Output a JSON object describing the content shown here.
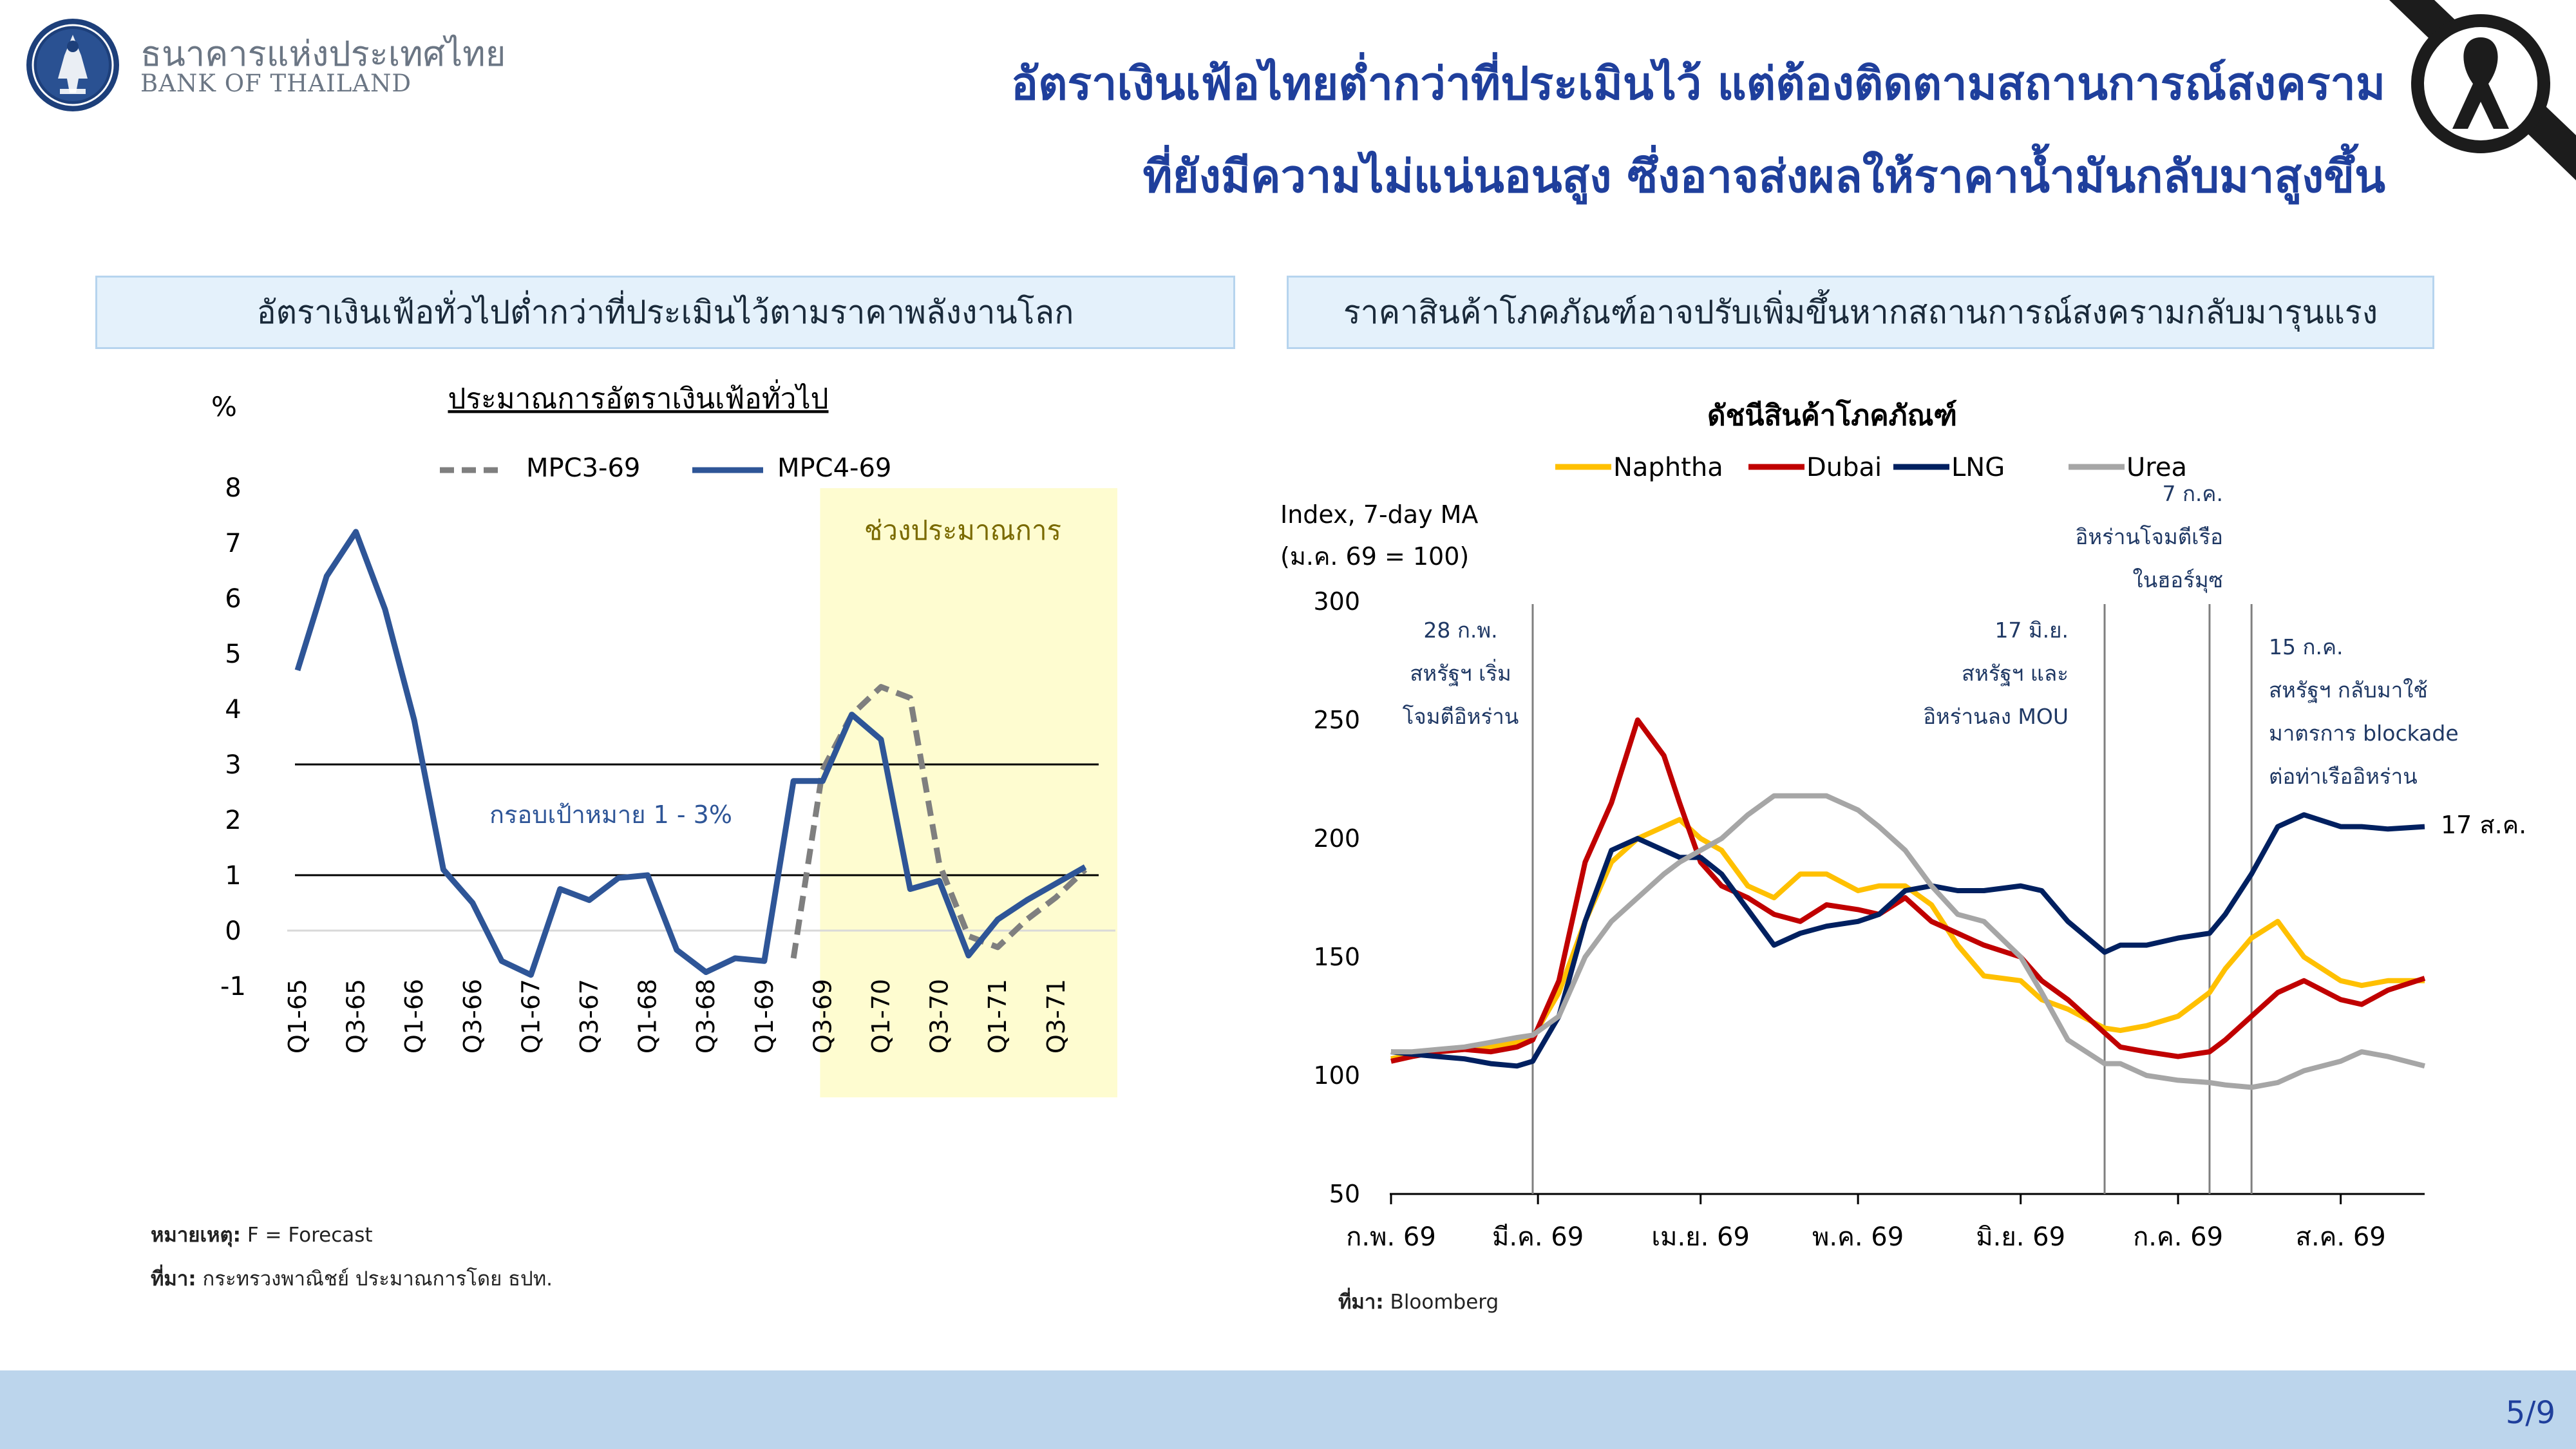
{
  "header": {
    "bank_name_th": "ธนาคารแห่งประเทศไทย",
    "bank_name_en": "BANK OF THAILAND",
    "title_line1": "อัตราเงินเฟ้อไทยต่ำกว่าที่ประเมินไว้ แต่ต้องติดตามสถานการณ์สงคราม",
    "title_line2": "ที่ยังมีความไม่แน่นอนสูง ซึ่งอาจส่งผลให้ราคาน้ำมันกลับมาสูงขึ้น"
  },
  "left_panel": {
    "header": "อัตราเงินเฟ้อทั่วไปต่ำกว่าที่ประเมินไว้ตามราคาพลังงานโลก",
    "note_label": "หมายเหตุ:",
    "note_text": "F = Forecast",
    "source_label": "ที่มา:",
    "source_text": "กระทรวงพาณิชย์ ประมาณการโดย ธปท."
  },
  "right_panel": {
    "header": "ราคาสินค้าโภคภัณฑ์อาจปรับเพิ่มขึ้นหากสถานการณ์สงครามกลับมารุนแรง",
    "source_label": "ที่มา:",
    "source_text": "Bloomberg"
  },
  "footer": {
    "page": "5/9"
  },
  "chart_data": [
    {
      "type": "line",
      "title": "ประมาณการอัตราเงินเฟ้อทั่วไป",
      "ylabel": "%",
      "ylim": [
        -1,
        8
      ],
      "yticks": [
        -1,
        0,
        1,
        2,
        3,
        4,
        5,
        6,
        7,
        8
      ],
      "x": [
        "Q1-65",
        "Q2-65",
        "Q3-65",
        "Q4-65",
        "Q1-66",
        "Q2-66",
        "Q3-66",
        "Q4-66",
        "Q1-67",
        "Q2-67",
        "Q3-67",
        "Q4-67",
        "Q1-68",
        "Q2-68",
        "Q3-68",
        "Q4-68",
        "Q1-69",
        "Q2-69",
        "Q3-69",
        "Q4-69",
        "Q1-70",
        "Q2-70",
        "Q3-70",
        "Q4-70",
        "Q1-71",
        "Q2-71",
        "Q3-71",
        "Q4-71"
      ],
      "x_tick_labels": [
        "Q1-65",
        "Q3-65",
        "Q1-66",
        "Q3-66",
        "Q1-67",
        "Q3-67",
        "Q1-68",
        "Q3-68",
        "Q1-69",
        "Q3-69",
        "Q1-70",
        "Q3-70",
        "Q1-71",
        "Q3-71"
      ],
      "series": [
        {
          "name": "MPC3-69",
          "style": "dashed",
          "color": "#7f7f7f",
          "values": [
            null,
            null,
            null,
            null,
            null,
            null,
            null,
            null,
            null,
            null,
            null,
            null,
            null,
            null,
            null,
            null,
            null,
            -0.5,
            2.9,
            3.9,
            4.4,
            4.2,
            1.2,
            -0.1,
            -0.3,
            0.2,
            0.6,
            1.1
          ]
        },
        {
          "name": "MPC4-69",
          "style": "solid",
          "color": "#2e5597",
          "values": [
            4.7,
            6.4,
            7.2,
            5.8,
            3.8,
            1.1,
            0.5,
            -0.55,
            -0.8,
            0.75,
            0.55,
            0.95,
            1.0,
            -0.35,
            -0.75,
            -0.5,
            -0.55,
            2.7,
            2.7,
            3.9,
            3.45,
            0.75,
            0.9,
            -0.45,
            0.2,
            0.55,
            0.85,
            1.15
          ]
        }
      ],
      "reference_lines": [
        1,
        3
      ],
      "shaded_label": "ช่วงประมาณการ",
      "shaded_from": "Q3-69",
      "target_band_label": "กรอบเป้าหมาย 1 - 3%",
      "grid": false,
      "legend_position": "top"
    },
    {
      "type": "line",
      "title": "ดัชนีสินค้าโภคภัณฑ์",
      "ylabel_line1": "Index, 7-day MA",
      "ylabel_line2": "(ม.ค. 69 = 100)",
      "ylim": [
        50,
        300
      ],
      "yticks": [
        50,
        100,
        150,
        200,
        250,
        300
      ],
      "x_dates": [
        "2026-02-01",
        "2026-02-05",
        "2026-02-10",
        "2026-02-15",
        "2026-02-20",
        "2026-02-25",
        "2026-02-28",
        "2026-03-05",
        "2026-03-10",
        "2026-03-15",
        "2026-03-20",
        "2026-03-25",
        "2026-03-28",
        "2026-04-01",
        "2026-04-05",
        "2026-04-10",
        "2026-04-15",
        "2026-04-20",
        "2026-04-25",
        "2026-05-01",
        "2026-05-05",
        "2026-05-10",
        "2026-05-15",
        "2026-05-20",
        "2026-05-25",
        "2026-06-01",
        "2026-06-05",
        "2026-06-10",
        "2026-06-17",
        "2026-06-20",
        "2026-06-25",
        "2026-07-01",
        "2026-07-07",
        "2026-07-10",
        "2026-07-15",
        "2026-07-20",
        "2026-07-25",
        "2026-08-01",
        "2026-08-05",
        "2026-08-10",
        "2026-08-17"
      ],
      "xlim": [
        "2026-02-01",
        "2026-08-17"
      ],
      "x_tick_labels": [
        "ก.พ. 69",
        "มี.ค. 69",
        "เม.ย. 69",
        "พ.ค. 69",
        "มิ.ย. 69",
        "ก.ค. 69",
        "ส.ค. 69"
      ],
      "x_tick_dates": [
        "2026-02-01",
        "2026-03-01",
        "2026-04-01",
        "2026-05-01",
        "2026-06-01",
        "2026-07-01",
        "2026-08-01"
      ],
      "series": [
        {
          "name": "Naphtha",
          "color": "#ffc000",
          "values": [
            107,
            109,
            110,
            111,
            112,
            114,
            116,
            135,
            165,
            190,
            200,
            205,
            208,
            200,
            195,
            180,
            175,
            185,
            185,
            178,
            180,
            180,
            172,
            155,
            142,
            140,
            132,
            128,
            120,
            119,
            121,
            125,
            135,
            145,
            158,
            165,
            150,
            140,
            138,
            140,
            140
          ]
        },
        {
          "name": "Dubai",
          "color": "#c00000",
          "values": [
            106,
            108,
            110,
            111,
            110,
            112,
            115,
            140,
            190,
            215,
            250,
            235,
            215,
            190,
            180,
            175,
            168,
            165,
            172,
            170,
            168,
            175,
            165,
            160,
            155,
            150,
            140,
            132,
            118,
            112,
            110,
            108,
            110,
            115,
            125,
            135,
            140,
            132,
            130,
            136,
            141
          ]
        },
        {
          "name": "LNG",
          "color": "#002060",
          "values": [
            110,
            109,
            108,
            107,
            105,
            104,
            106,
            125,
            165,
            195,
            200,
            195,
            192,
            192,
            185,
            170,
            155,
            160,
            163,
            165,
            168,
            178,
            180,
            178,
            178,
            180,
            178,
            165,
            152,
            155,
            155,
            158,
            160,
            168,
            185,
            205,
            210,
            205,
            205,
            204,
            205
          ]
        },
        {
          "name": "Urea",
          "color": "#a6a6a6",
          "values": [
            110,
            110,
            111,
            112,
            114,
            116,
            117,
            125,
            150,
            165,
            175,
            185,
            190,
            195,
            200,
            210,
            218,
            218,
            218,
            212,
            205,
            195,
            180,
            168,
            165,
            150,
            135,
            115,
            105,
            105,
            100,
            98,
            97,
            96,
            95,
            97,
            102,
            106,
            110,
            108,
            104
          ]
        }
      ],
      "event_lines": [
        {
          "date": "2026-02-28",
          "label": [
            "28 ก.พ.",
            "สหรัฐฯ เริ่ม",
            "โจมตีอิหร่าน"
          ]
        },
        {
          "date": "2026-06-17",
          "label": [
            "17 มิ.ย.",
            "สหรัฐฯ และ",
            "อิหร่านลง MOU"
          ]
        },
        {
          "date": "2026-07-07",
          "label": [
            "7 ก.ค.",
            "อิหร่านโจมตีเรือ",
            "ในฮอร์มุซ"
          ]
        },
        {
          "date": "2026-07-15",
          "label": [
            "15 ก.ค.",
            "สหรัฐฯ กลับมาใช้",
            "มาตรการ blockade",
            "ต่อท่าเรืออิหร่าน"
          ]
        }
      ],
      "end_label": "17 ส.ค.",
      "grid": false,
      "legend_position": "top"
    }
  ]
}
